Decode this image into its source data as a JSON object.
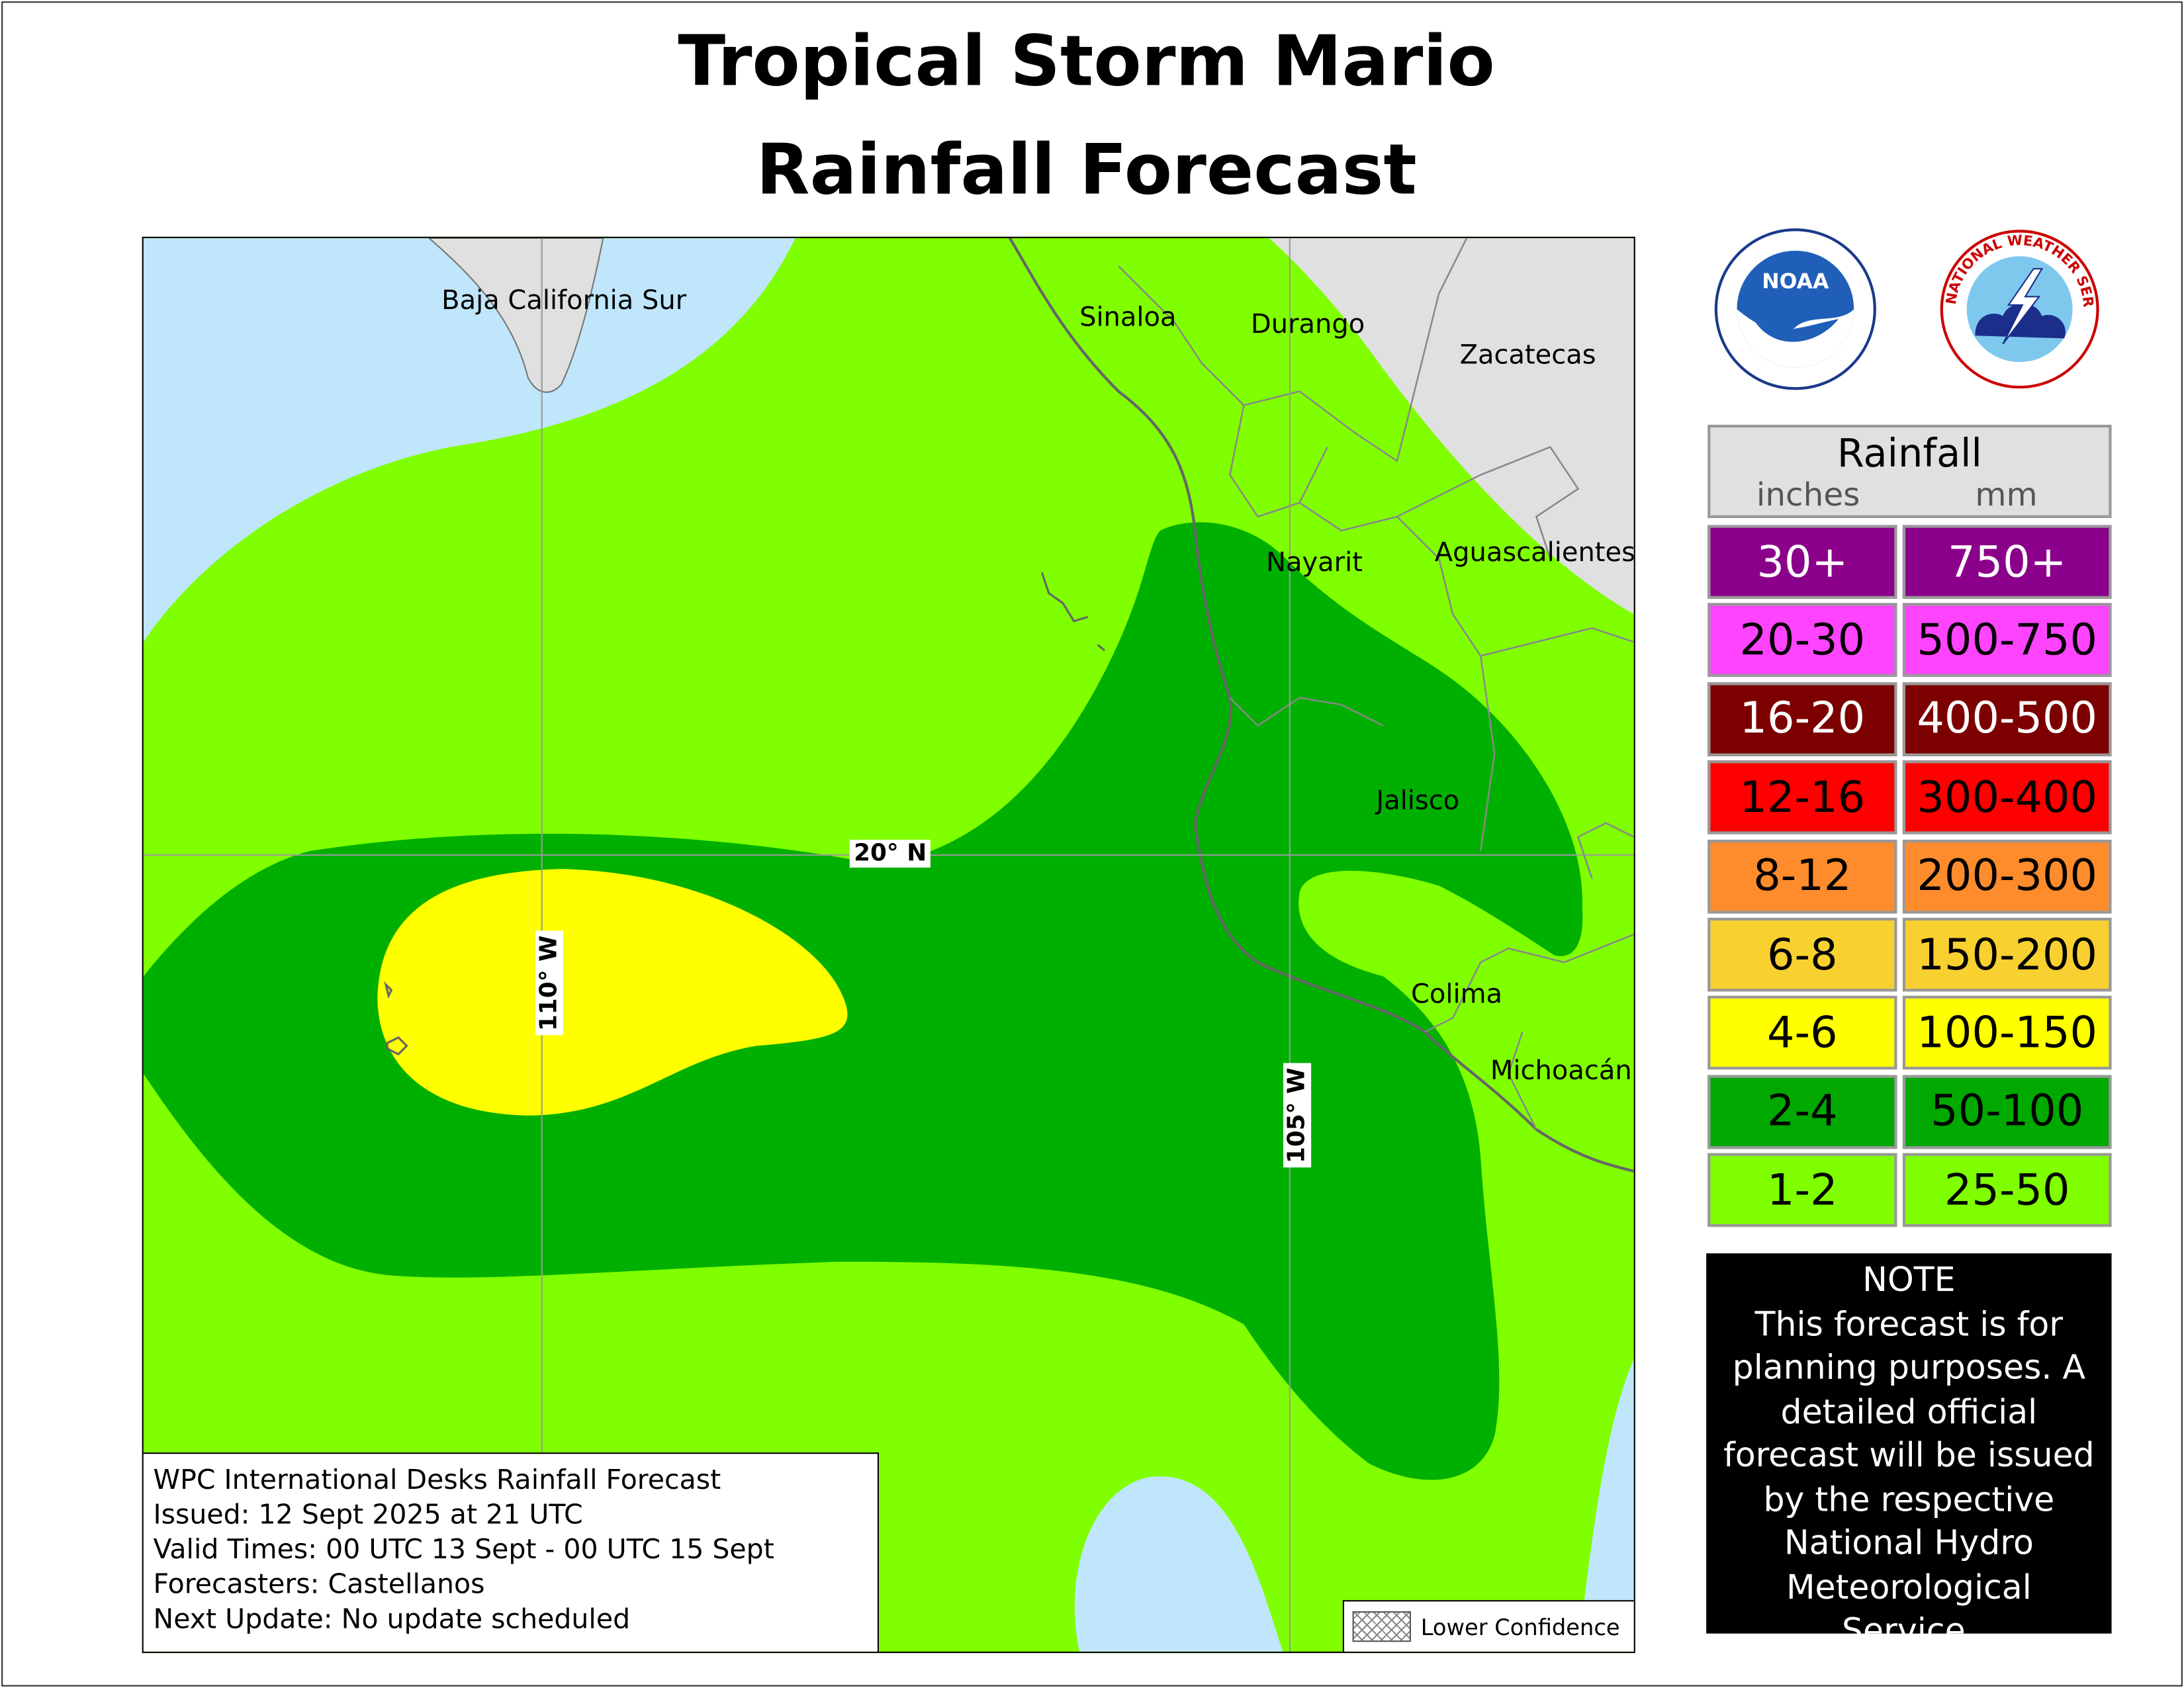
{
  "title": {
    "line1": "Tropical Storm Mario",
    "line2": "Rainfall Forecast"
  },
  "colors": {
    "water": "#bfe6fb",
    "land": "#e0e0e0",
    "rain_1_2": "#7fff00",
    "rain_2_4": "#00b000",
    "rain_4_6": "#ffff00"
  },
  "map": {
    "regions": [
      "Baja California Sur",
      "Sinaloa",
      "Durango",
      "Zacatecas",
      "Nayarit",
      "Aguascalientes",
      "Jalisco",
      "Colima",
      "Michoacán"
    ],
    "gridlines": {
      "lat": "20° N",
      "lon1": "110° W",
      "lon2": "105° W"
    },
    "info": {
      "line1": "WPC International Desks Rainfall Forecast",
      "line2": "Issued: 12 Sept 2025 at 21 UTC",
      "line3": "Valid Times: 00 UTC 13 Sept - 00 UTC 15 Sept",
      "line4": "Forecasters: Castellanos",
      "line5": "Next Update: No update scheduled"
    },
    "lower_confidence": "Lower Confidence"
  },
  "logos": {
    "noaa": "NOAA",
    "nws": "NATIONAL WEATHER SERVICE"
  },
  "legend": {
    "title": "Rainfall",
    "inches_label": "inches",
    "mm_label": "mm",
    "rows": [
      {
        "in": "30+",
        "mm": "750+",
        "color": "#8b008b",
        "text": "#ffffff"
      },
      {
        "in": "20-30",
        "mm": "500-750",
        "color": "#ff44ff",
        "text": "#000000"
      },
      {
        "in": "16-20",
        "mm": "400-500",
        "color": "#7d0000",
        "text": "#ffffff"
      },
      {
        "in": "12-16",
        "mm": "300-400",
        "color": "#ff0000",
        "text": "#000000"
      },
      {
        "in": "8-12",
        "mm": "200-300",
        "color": "#ff8c2c",
        "text": "#000000"
      },
      {
        "in": "6-8",
        "mm": "150-200",
        "color": "#f8d030",
        "text": "#000000"
      },
      {
        "in": "4-6",
        "mm": "100-150",
        "color": "#ffff00",
        "text": "#000000"
      },
      {
        "in": "2-4",
        "mm": "50-100",
        "color": "#00a800",
        "text": "#000000"
      },
      {
        "in": "1-2",
        "mm": "25-50",
        "color": "#7fff00",
        "text": "#000000"
      }
    ]
  },
  "note": {
    "heading": "NOTE",
    "body": "This forecast is for planning purposes. A detailed official forecast will be issued by the respective National Hydro Meteorological Service."
  }
}
